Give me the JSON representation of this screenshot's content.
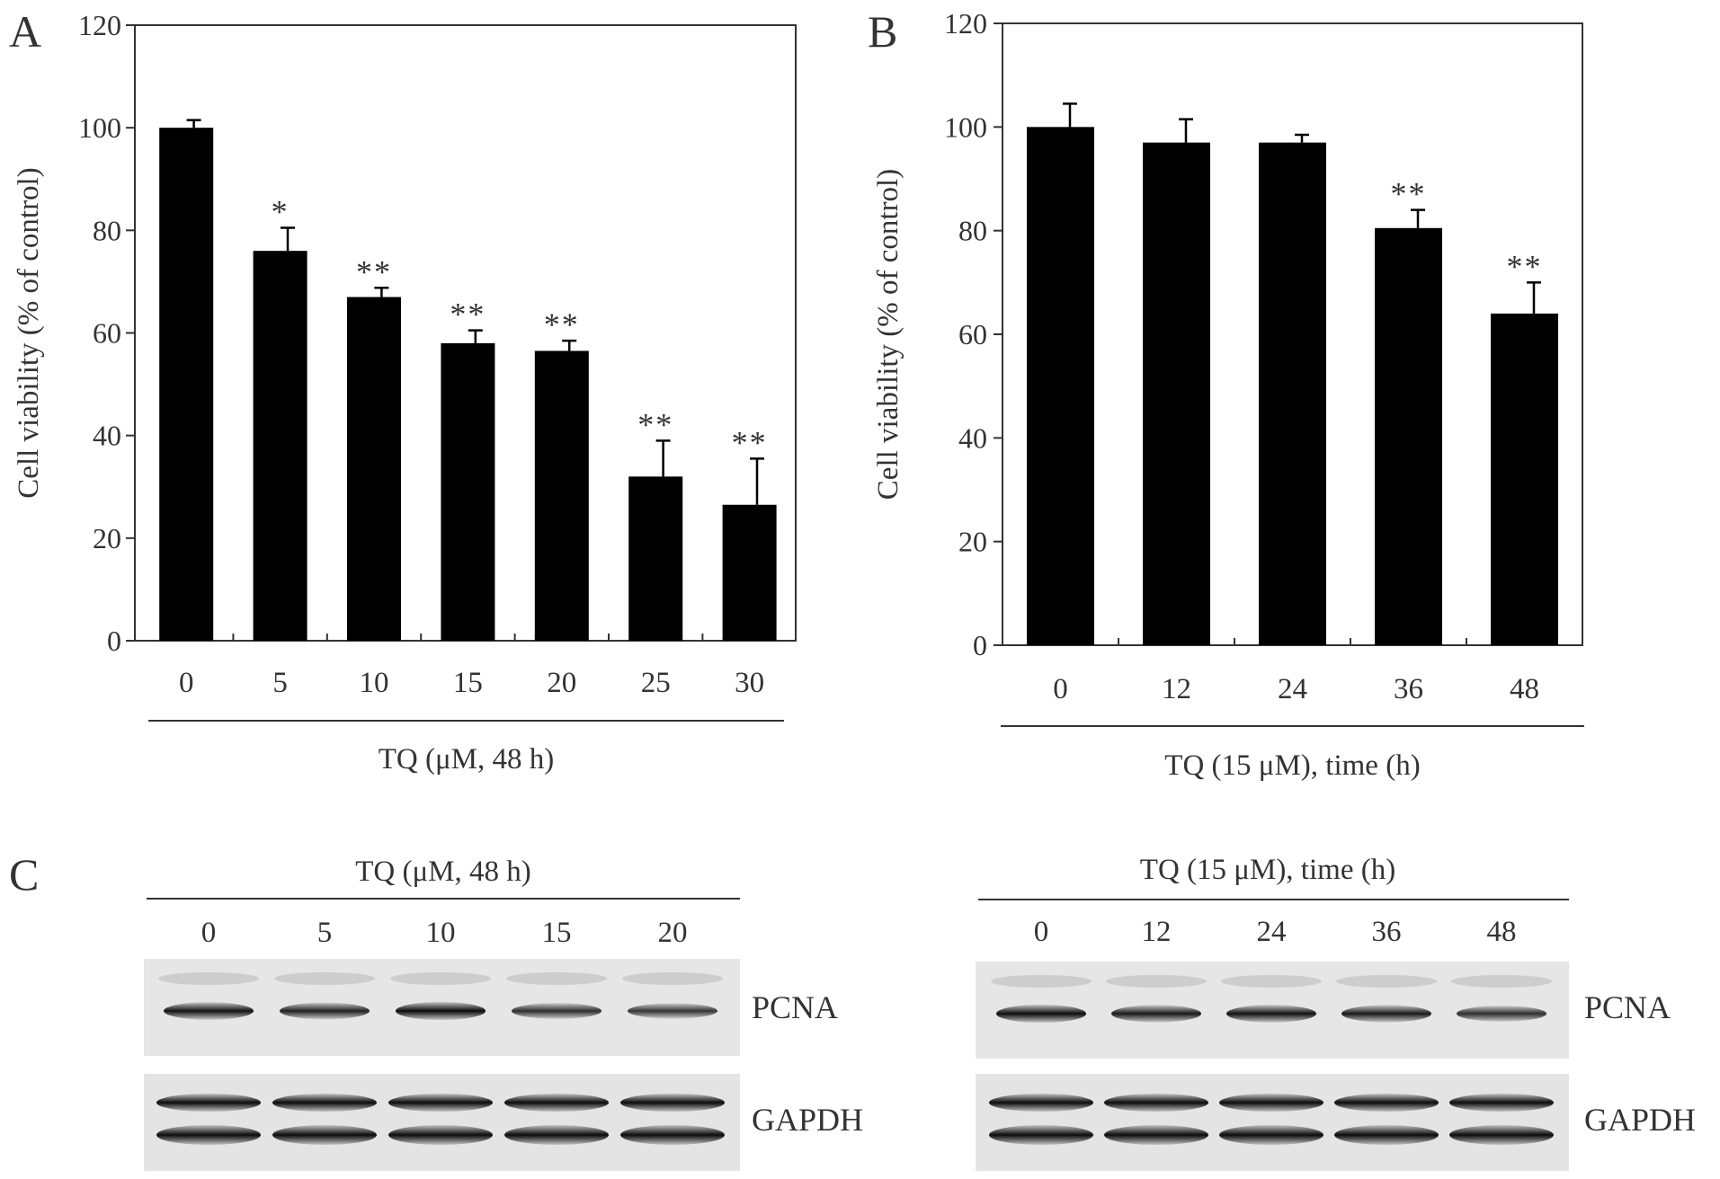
{
  "panels": {
    "a": "A",
    "b": "B",
    "c": "C"
  },
  "chart_data": [
    {
      "type": "bar",
      "panel": "A",
      "categories": [
        "0",
        "5",
        "10",
        "15",
        "20",
        "25",
        "30"
      ],
      "values": [
        100,
        76,
        67,
        58,
        56.5,
        32,
        26.5
      ],
      "errors": [
        1.5,
        4.5,
        1.8,
        2.5,
        2.0,
        7.0,
        9.0
      ],
      "significance": [
        "",
        "*",
        "**",
        "**",
        "**",
        "**",
        "**"
      ],
      "ylabel": "Cell viability (% of control)",
      "xlabel": "TQ (μM, 48 h)",
      "ylim": [
        0,
        120
      ],
      "yticks": [
        0,
        20,
        40,
        60,
        80,
        100,
        120
      ]
    },
    {
      "type": "bar",
      "panel": "B",
      "categories": [
        "0",
        "12",
        "24",
        "36",
        "48"
      ],
      "values": [
        100,
        97,
        97,
        80.5,
        64
      ],
      "errors": [
        4.5,
        4.5,
        1.5,
        3.5,
        6.0
      ],
      "significance": [
        "",
        "",
        "",
        "**",
        "**"
      ],
      "ylabel": "Cell viability (% of control)",
      "xlabel": "TQ (15 μM), time (h)",
      "ylim": [
        0,
        120
      ],
      "yticks": [
        0,
        20,
        40,
        60,
        80,
        100,
        120
      ]
    }
  ],
  "blots": {
    "left": {
      "title": "TQ (μM, 48 h)",
      "lanes": [
        "0",
        "5",
        "10",
        "15",
        "20"
      ],
      "pcna": "PCNA",
      "gapdh": "GAPDH",
      "pcna_intensity": [
        0.95,
        0.85,
        1.0,
        0.75,
        0.7
      ]
    },
    "right": {
      "title": "TQ (15 μM), time (h)",
      "lanes": [
        "0",
        "12",
        "24",
        "36",
        "48"
      ],
      "pcna": "PCNA",
      "gapdh": "GAPDH",
      "pcna_intensity": [
        1.0,
        0.9,
        0.95,
        0.9,
        0.75
      ]
    }
  }
}
